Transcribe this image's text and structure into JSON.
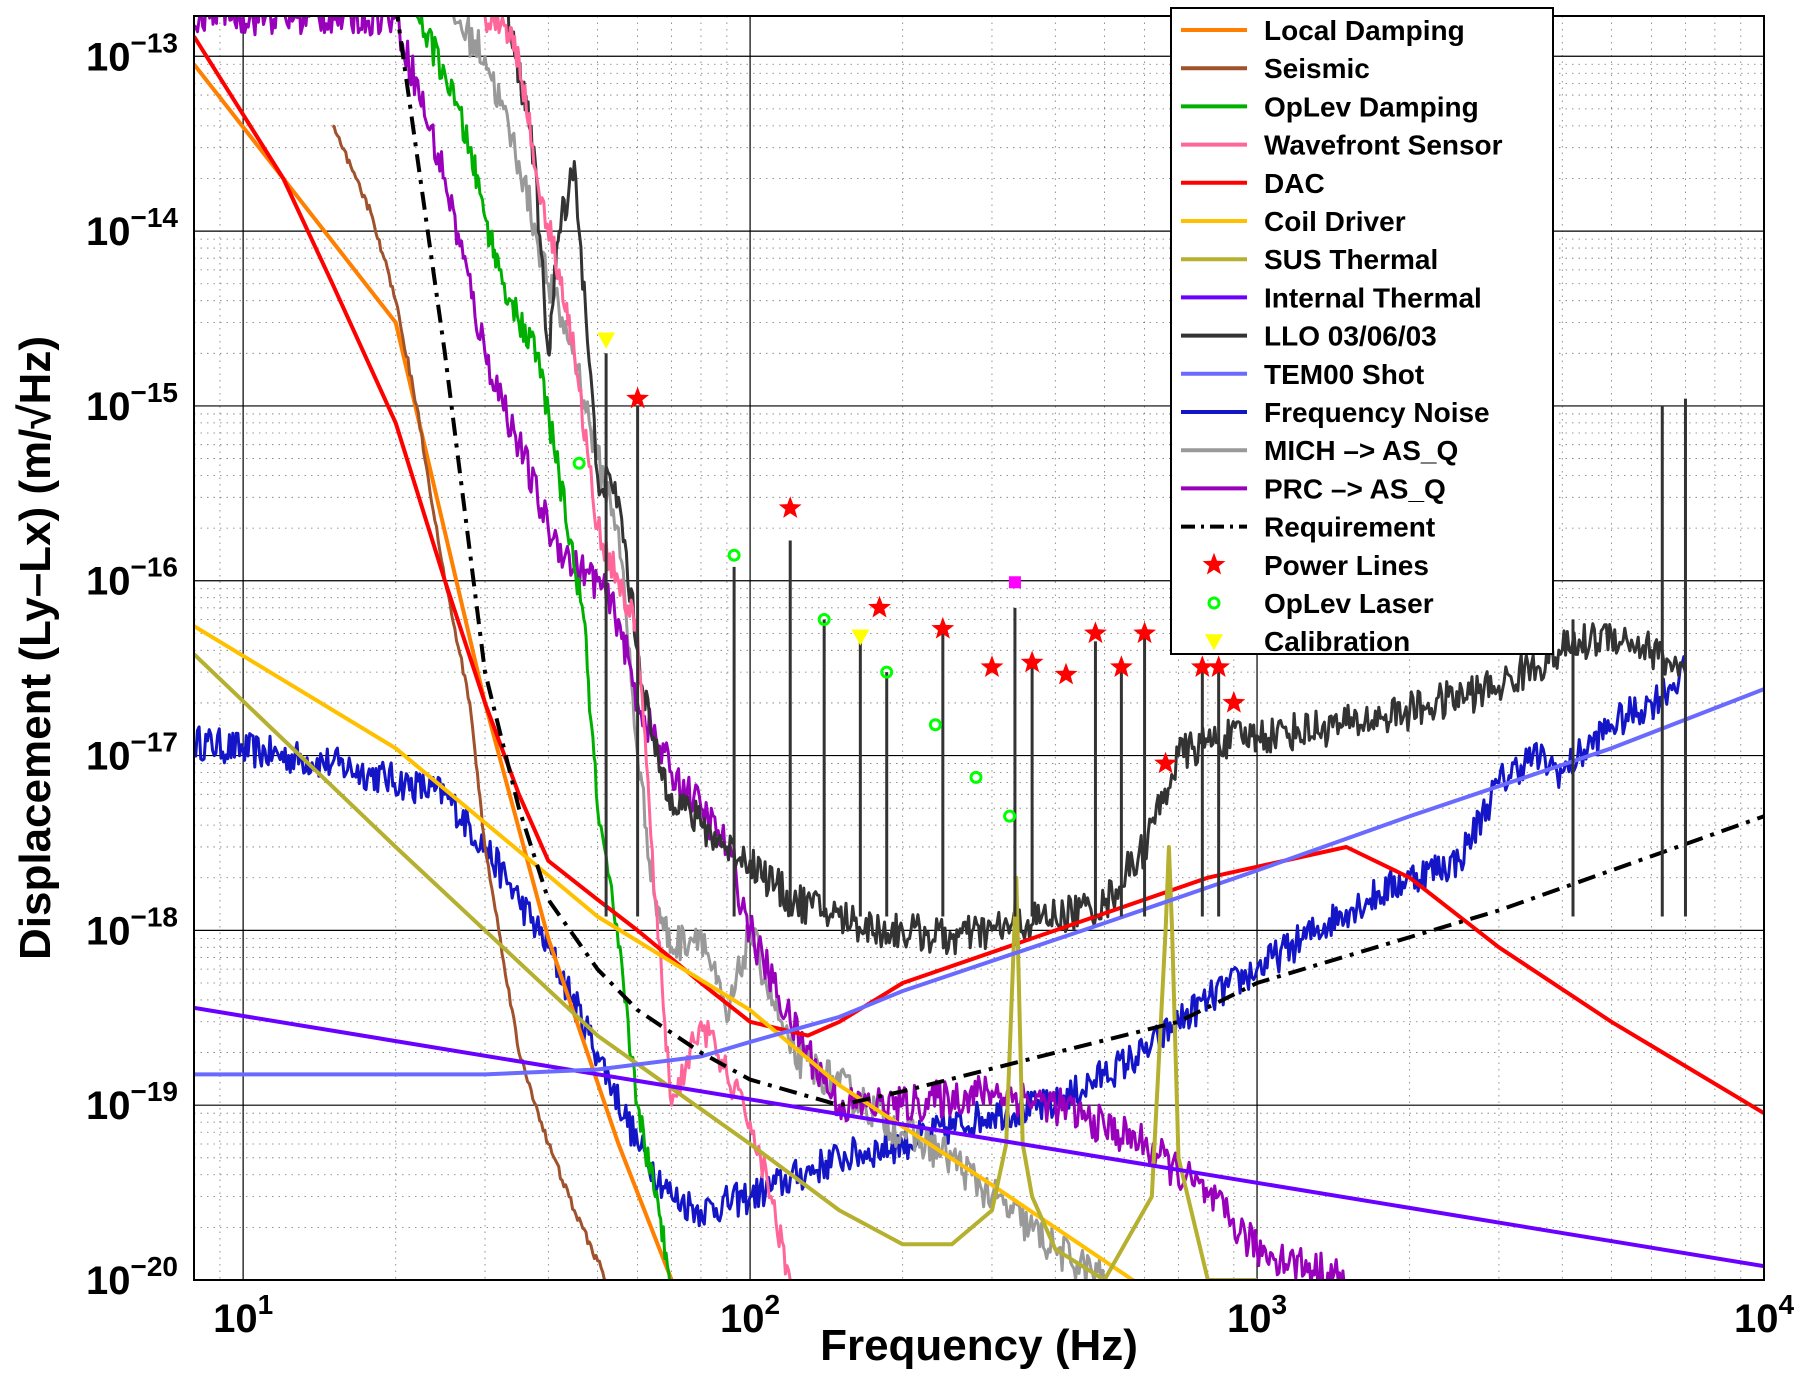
{
  "chart_data": {
    "type": "line",
    "xlabel": "Frequency (Hz)",
    "ylabel": "Displacement (Ly–Lx) (m/√Hz)",
    "x_scale": "log",
    "y_scale": "log",
    "xlim": [
      8,
      10000
    ],
    "ylim": [
      1e-20,
      1.7e-13
    ],
    "grid": true,
    "legend_position": "top-right",
    "x_ticks": [
      {
        "value": 10,
        "base": "10",
        "exp": "1"
      },
      {
        "value": 100,
        "base": "10",
        "exp": "2"
      },
      {
        "value": 1000,
        "base": "10",
        "exp": "3"
      },
      {
        "value": 10000,
        "base": "10",
        "exp": "4"
      }
    ],
    "y_ticks": [
      {
        "value": 1e-20,
        "base": "10",
        "exp": "−20"
      },
      {
        "value": 1e-19,
        "base": "10",
        "exp": "−19"
      },
      {
        "value": 1e-18,
        "base": "10",
        "exp": "−18"
      },
      {
        "value": 1e-17,
        "base": "10",
        "exp": "−17"
      },
      {
        "value": 1e-16,
        "base": "10",
        "exp": "−16"
      },
      {
        "value": 1e-15,
        "base": "10",
        "exp": "−15"
      },
      {
        "value": 1e-14,
        "base": "10",
        "exp": "−14"
      },
      {
        "value": 1e-13,
        "base": "10",
        "exp": "−13"
      }
    ],
    "series": [
      {
        "name": "Local Damping",
        "color": "#ff7f00",
        "style": "solid",
        "noise": 0,
        "x": [
          8,
          12,
          20,
          30,
          40,
          55,
          70
        ],
        "y": [
          9e-14,
          2e-14,
          3e-15,
          2e-17,
          9e-19,
          6e-20,
          1e-20
        ]
      },
      {
        "name": "Seismic",
        "color": "#a0522d",
        "style": "solid",
        "noise": 0.05,
        "x": [
          15,
          18,
          20,
          22,
          25,
          28,
          30,
          35,
          40,
          45,
          52
        ],
        "y": [
          4e-14,
          1.2e-14,
          4e-15,
          1e-15,
          1e-16,
          2e-17,
          3e-18,
          2e-19,
          6e-20,
          2.5e-20,
          1e-20
        ]
      },
      {
        "name": "OpLev Damping",
        "color": "#00b000",
        "style": "solid",
        "noise": 0.18,
        "x": [
          22,
          25,
          28,
          30,
          32,
          35,
          38,
          42,
          47,
          50,
          55,
          60,
          65,
          70
        ],
        "y": [
          1.7e-13,
          8e-14,
          3e-14,
          1.2e-14,
          6e-15,
          3e-15,
          2e-15,
          4e-16,
          6e-17,
          5e-18,
          8e-19,
          1e-19,
          3e-20,
          1e-20
        ]
      },
      {
        "name": "Wavefront Sensor",
        "color": "#ff6699",
        "style": "solid",
        "noise": 0.18,
        "x": [
          30,
          33,
          35,
          38,
          42,
          45,
          50,
          55,
          60,
          65,
          70,
          80,
          90,
          100,
          110,
          120
        ],
        "y": [
          1.7e-13,
          1.5e-13,
          1e-13,
          2e-14,
          6e-15,
          2e-15,
          2e-16,
          1e-16,
          5e-17,
          1.5e-18,
          1e-19,
          3e-19,
          1.5e-19,
          8e-20,
          3e-20,
          1e-20
        ]
      },
      {
        "name": "DAC",
        "color": "#ff0000",
        "style": "solid",
        "noise": 0,
        "x": [
          8,
          12,
          15,
          20,
          25,
          30,
          35,
          40,
          50,
          60,
          80,
          100,
          130,
          150,
          200,
          400,
          800,
          1500,
          2000,
          3000,
          5000,
          10000
        ],
        "y": [
          1.3e-13,
          2e-14,
          5e-15,
          8e-16,
          1e-16,
          2e-17,
          6e-18,
          2.5e-18,
          1.5e-18,
          1e-18,
          5e-19,
          3e-19,
          2.5e-19,
          3e-19,
          5e-19,
          1e-18,
          2e-18,
          3e-18,
          2e-18,
          8e-19,
          3e-19,
          9e-20
        ]
      },
      {
        "name": "Coil Driver",
        "color": "#ffc000",
        "style": "solid",
        "noise": 0,
        "x": [
          8,
          20,
          50,
          100,
          150,
          300,
          600
        ],
        "y": [
          5.5e-17,
          1.1e-17,
          1.2e-18,
          3.5e-19,
          1.3e-19,
          3.5e-20,
          9e-21
        ]
      },
      {
        "name": "SUS Thermal",
        "color": "#b5b030",
        "style": "solid",
        "noise": 0,
        "x": [
          8,
          20,
          50,
          100,
          150,
          200,
          250,
          300,
          320,
          335,
          345,
          360,
          400,
          500,
          620,
          660,
          670,
          680,
          700,
          800,
          1000
        ],
        "y": [
          3.8e-17,
          3e-18,
          2.5e-19,
          6e-20,
          2.5e-20,
          1.6e-20,
          1.6e-20,
          2.5e-20,
          6e-20,
          2e-18,
          6e-20,
          3e-20,
          1.5e-20,
          1e-20,
          3e-20,
          1e-18,
          3e-18,
          1e-18,
          5e-20,
          1e-20,
          1e-20
        ]
      },
      {
        "name": "Internal Thermal",
        "color": "#6a00ff",
        "style": "solid",
        "noise": 0,
        "x": [
          8,
          10000
        ],
        "y": [
          3.6e-19,
          1.2e-20
        ]
      },
      {
        "name": "LLO 03/06/03",
        "color": "#333333",
        "style": "solid",
        "noise": 0.22,
        "x": [
          33,
          35,
          37,
          40,
          42,
          45,
          50,
          55,
          60,
          65,
          70,
          80,
          90,
          100,
          120,
          150,
          180,
          200,
          250,
          300,
          400,
          500,
          600,
          700,
          800,
          1000,
          1500,
          2000,
          3000,
          4000,
          5000,
          6000,
          7000
        ],
        "y": [
          1.7e-13,
          8e-14,
          4e-14,
          2e-15,
          1e-14,
          2.5e-14,
          4e-16,
          3e-16,
          4e-17,
          1e-17,
          6e-18,
          4e-18,
          3e-18,
          2.5e-18,
          1.5e-18,
          1.2e-18,
          1e-18,
          1e-18,
          9e-19,
          1e-18,
          1.2e-18,
          1.4e-18,
          3e-18,
          1e-17,
          1.2e-17,
          1.3e-17,
          1.5e-17,
          1.8e-17,
          2.5e-17,
          4e-17,
          5e-17,
          4e-17,
          3e-17
        ]
      },
      {
        "name": "TEM00 Shot",
        "color": "#6a6aff",
        "style": "solid",
        "noise": 0,
        "x": [
          8,
          30,
          50,
          80,
          100,
          150,
          200,
          500,
          1000,
          2000,
          5000,
          10000
        ],
        "y": [
          1.5e-19,
          1.5e-19,
          1.6e-19,
          1.9e-19,
          2.3e-19,
          3.2e-19,
          4.5e-19,
          1.1e-18,
          2.2e-18,
          4.5e-18,
          1.1e-17,
          2.4e-17
        ]
      },
      {
        "name": "Frequency Noise",
        "color": "#1515c8",
        "style": "solid",
        "noise": 0.2,
        "x": [
          8,
          15,
          25,
          30,
          35,
          40,
          50,
          60,
          70,
          80,
          100,
          150,
          200,
          300,
          400,
          500,
          600,
          700,
          800,
          1000,
          1500,
          2000,
          2500,
          3000,
          3500,
          4000,
          5000,
          6000,
          7000
        ],
        "y": [
          1.2e-17,
          9e-18,
          6e-18,
          3e-18,
          1.5e-18,
          8e-19,
          2e-19,
          6e-20,
          3e-20,
          2.5e-20,
          3e-20,
          5e-20,
          6e-20,
          9e-20,
          1e-19,
          1.5e-19,
          2e-19,
          3e-19,
          4e-19,
          6e-19,
          1.3e-18,
          2e-18,
          2.5e-18,
          7e-18,
          1e-17,
          8e-18,
          1.5e-17,
          2e-17,
          3e-17
        ]
      },
      {
        "name": "MICH  –> AS_Q",
        "color": "#999999",
        "style": "solid",
        "noise": 0.22,
        "x": [
          26,
          30,
          35,
          40,
          45,
          50,
          55,
          60,
          65,
          70,
          80,
          90,
          100,
          120,
          150,
          200,
          250,
          300,
          400,
          500
        ],
        "y": [
          1.7e-13,
          1e-13,
          2.5e-14,
          5e-15,
          2e-15,
          5e-16,
          2e-16,
          1e-17,
          1.5e-18,
          8e-19,
          1e-18,
          3e-19,
          1e-18,
          2e-19,
          1.3e-19,
          7e-20,
          5e-20,
          3e-20,
          1.5e-20,
          1e-20
        ]
      },
      {
        "name": "PRC –> AS_Q",
        "color": "#9900bb",
        "style": "solid",
        "noise": 0.22,
        "x": [
          8,
          9,
          10,
          20,
          25,
          30,
          35,
          40,
          45,
          50,
          55,
          60,
          70,
          80,
          90,
          100,
          120,
          150,
          200,
          300,
          400,
          600,
          800,
          1000,
          1500
        ],
        "y": [
          1.5e-13,
          2e-13,
          1.7e-13,
          1.7e-13,
          2e-14,
          2e-15,
          6e-16,
          2e-16,
          1.2e-16,
          1e-16,
          6e-17,
          2e-17,
          8e-18,
          5e-18,
          3e-18,
          1e-18,
          3e-19,
          1e-19,
          1e-19,
          1.2e-19,
          1e-19,
          6e-20,
          3e-20,
          1.5e-20,
          1e-20
        ]
      },
      {
        "name": "Requirement",
        "color": "#000000",
        "style": "dashdot",
        "noise": 0,
        "x": [
          20,
          25,
          30,
          35,
          40,
          50,
          60,
          80,
          100,
          150,
          200,
          400,
          700,
          1000,
          3000,
          10000
        ],
        "y": [
          2e-13,
          2e-15,
          3e-17,
          5e-18,
          1.5e-18,
          6e-19,
          3.5e-19,
          2e-19,
          1.4e-19,
          1e-19,
          1.2e-19,
          2e-19,
          3e-19,
          5e-19,
          1.3e-18,
          4.5e-18
        ]
      }
    ],
    "markers": [
      {
        "name": "Power Lines",
        "symbol": "star",
        "color": "#ff0000",
        "points": [
          [
            60,
            1.1e-15
          ],
          [
            120,
            2.6e-16
          ],
          [
            180,
            7e-17
          ],
          [
            240,
            5.3e-17
          ],
          [
            300,
            3.2e-17
          ],
          [
            360,
            3.4e-17
          ],
          [
            420,
            2.9e-17
          ],
          [
            480,
            5e-17
          ],
          [
            540,
            3.2e-17
          ],
          [
            600,
            5e-17
          ],
          [
            660,
            9e-18
          ],
          [
            780,
            3.2e-17
          ],
          [
            840,
            3.2e-17
          ],
          [
            900,
            2e-17
          ]
        ]
      },
      {
        "name": "OpLev Laser",
        "symbol": "circle",
        "color": "#00ff00",
        "points": [
          [
            46,
            4.7e-16
          ],
          [
            93,
            1.4e-16
          ],
          [
            140,
            6e-17
          ],
          [
            186,
            3e-17
          ],
          [
            232,
            1.5e-17
          ],
          [
            279,
            7.5e-18
          ],
          [
            325,
            4.5e-18
          ]
        ]
      },
      {
        "name": "Calibration",
        "symbol": "triangle",
        "color": "#ffff00",
        "points": [
          [
            52,
            2.4e-15
          ],
          [
            165,
            4.8e-17
          ]
        ]
      },
      {
        "name": "",
        "symbol": "square",
        "color": "#ff00ff",
        "points": [
          [
            333,
            9.8e-17
          ]
        ]
      }
    ],
    "spikes": [
      {
        "color": "#333333",
        "points": [
          [
            52,
            2e-15
          ],
          [
            60,
            1e-15
          ],
          [
            93,
            1.2e-16
          ],
          [
            120,
            1.7e-16
          ],
          [
            140,
            6e-17
          ],
          [
            165,
            4.5e-17
          ],
          [
            186,
            3e-17
          ],
          [
            240,
            5e-17
          ],
          [
            333,
            7e-17
          ],
          [
            360,
            3.3e-17
          ],
          [
            480,
            4.5e-17
          ],
          [
            540,
            3e-17
          ],
          [
            600,
            5e-17
          ],
          [
            780,
            3e-17
          ],
          [
            840,
            3e-17
          ],
          [
            4200,
            6e-17
          ],
          [
            6300,
            1e-15
          ],
          [
            7000,
            1.1e-15
          ]
        ]
      }
    ]
  }
}
